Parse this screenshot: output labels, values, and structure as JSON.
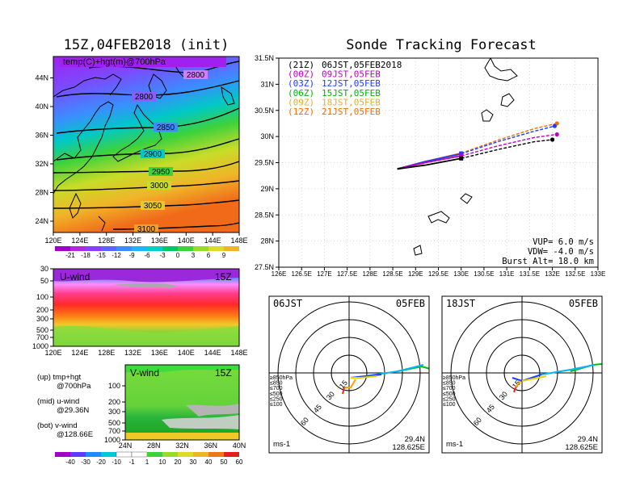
{
  "map_panel": {
    "title": "15Z,04FEB2018 (init)",
    "field_label": "temp(C)+hgt(m)@700hPa",
    "x_ticks": [
      "120E",
      "124E",
      "128E",
      "132E",
      "136E",
      "140E",
      "144E",
      "148E"
    ],
    "y_ticks": [
      "24N",
      "28N",
      "32N",
      "36N",
      "40N",
      "44N"
    ],
    "contours": [
      "2800",
      "2800",
      "2850",
      "2900",
      "2950",
      "3000",
      "3050",
      "3100"
    ],
    "colorbar_labels": [
      "-21",
      "-18",
      "-15",
      "-12",
      "-9",
      "-6",
      "-3",
      "0",
      "3",
      "6",
      "9"
    ]
  },
  "uwind_panel": {
    "label": "U-wind",
    "time": "15Z",
    "y_ticks": [
      "30",
      "50",
      "100",
      "200",
      "300",
      "500",
      "700",
      "1000"
    ],
    "x_ticks": [
      "120E",
      "124E",
      "128E",
      "132E",
      "136E",
      "140E",
      "144E",
      "148E"
    ]
  },
  "vwind_panel": {
    "label": "V-wind",
    "time": "15Z",
    "y_ticks": [
      "100",
      "200",
      "300",
      "500",
      "700",
      "1000"
    ],
    "x_ticks": [
      "24N",
      "28N",
      "32N",
      "36N",
      "40N"
    ],
    "colorbar_labels": [
      "-40",
      "-30",
      "-20",
      "-10",
      "-1",
      "1",
      "10",
      "20",
      "30",
      "40",
      "50",
      "60"
    ]
  },
  "legend_notes": [
    {
      "head": "(up) tmp+hgt",
      "sub": "@700hPa"
    },
    {
      "head": "(mid) u-wind",
      "sub": "@29.36N"
    },
    {
      "head": "(bot) v-wind",
      "sub": "@128.66E"
    }
  ],
  "track_panel": {
    "title": "Sonde Tracking Forecast",
    "entries": [
      {
        "code": "(21Z)",
        "text": "06JST,05FEB2018",
        "color": "#000000"
      },
      {
        "code": "(00Z)",
        "text": "09JST,05FEB",
        "color": "#c000c0"
      },
      {
        "code": "(03Z)",
        "text": "12JST,05FEB",
        "color": "#1e3cff"
      },
      {
        "code": "(06Z)",
        "text": "15JST,05FEB",
        "color": "#00b400"
      },
      {
        "code": "(09Z)",
        "text": "18JST,05FEB",
        "color": "#e6af2d"
      },
      {
        "code": "(12Z)",
        "text": "21JST,05FEB",
        "color": "#f06e00"
      }
    ],
    "params": [
      "VUP= 6.0 m/s",
      "VDW= -4.0 m/s",
      "Burst Alt= 18.0 km"
    ],
    "x_ticks": [
      "126E",
      "126.5E",
      "127E",
      "127.5E",
      "128E",
      "128.5E",
      "129E",
      "129.5E",
      "130E",
      "130.5E",
      "131E",
      "131.5E",
      "132E",
      "132.5E",
      "133E"
    ],
    "y_ticks": [
      "27.5N",
      "28N",
      "28.5N",
      "29N",
      "29.5N",
      "30N",
      "30.5N",
      "31N",
      "31.5N"
    ]
  },
  "hodo_left": {
    "time": "06JST",
    "date": "05FEB",
    "lat": "29.4N",
    "lon": "128.625E",
    "unit": "ms-1",
    "rings": [
      "15",
      "30",
      "45",
      "60"
    ]
  },
  "hodo_right": {
    "time": "18JST",
    "date": "05FEB",
    "lat": "29.4N",
    "lon": "128.625E",
    "unit": "ms-1",
    "rings": [
      "15",
      "30",
      "45",
      "60"
    ]
  },
  "hodo_levels": [
    {
      "label": "≥850hPa",
      "color": "#ff2020"
    },
    {
      "label": "≤850",
      "color": "#ffa000"
    },
    {
      "label": "≤700",
      "color": "#e6d200"
    },
    {
      "label": "≤500",
      "color": "#00c000"
    },
    {
      "label": "≤250",
      "color": "#00b4ff"
    },
    {
      "label": "≤100",
      "color": "#8040ff"
    }
  ],
  "chart_data": {
    "type": "line",
    "title": "Sonde Tracking Forecast",
    "xlim": [
      126,
      133
    ],
    "ylim": [
      27.5,
      31.5
    ],
    "series": [
      {
        "name": "(21Z) 06JST,05FEB2018",
        "color": "#000000",
        "x": [
          128.6,
          129.2,
          130.0,
          130.8,
          131.6,
          132.0
        ],
        "y": [
          29.38,
          29.45,
          29.58,
          29.75,
          29.9,
          29.94
        ]
      },
      {
        "name": "(00Z) 09JST,05FEB",
        "color": "#c000c0",
        "x": [
          128.6,
          129.2,
          130.0,
          130.8,
          131.6,
          132.1
        ],
        "y": [
          29.38,
          29.5,
          29.63,
          29.82,
          29.98,
          30.04
        ]
      },
      {
        "name": "(03Z) 12JST,05FEB",
        "color": "#1e3cff",
        "x": [
          128.6,
          129.2,
          130.0,
          130.8,
          131.6,
          132.05
        ],
        "y": [
          29.38,
          29.52,
          29.67,
          29.9,
          30.1,
          30.2
        ]
      },
      {
        "name": "(06Z) 15JST,05FEB",
        "color": "#00b400",
        "x": [
          128.6,
          129.2,
          130.0
        ],
        "y": [
          29.38,
          29.5,
          29.65
        ]
      },
      {
        "name": "(09Z) 18JST,05FEB",
        "color": "#e6af2d",
        "x": [
          128.6,
          129.2,
          130.0
        ],
        "y": [
          29.38,
          29.5,
          29.65
        ]
      },
      {
        "name": "(12Z) 21JST,05FEB",
        "color": "#f06e00",
        "x": [
          128.6,
          129.2,
          130.0,
          130.8,
          131.6,
          132.1
        ],
        "y": [
          29.38,
          29.52,
          29.68,
          29.93,
          30.15,
          30.25
        ]
      }
    ]
  }
}
